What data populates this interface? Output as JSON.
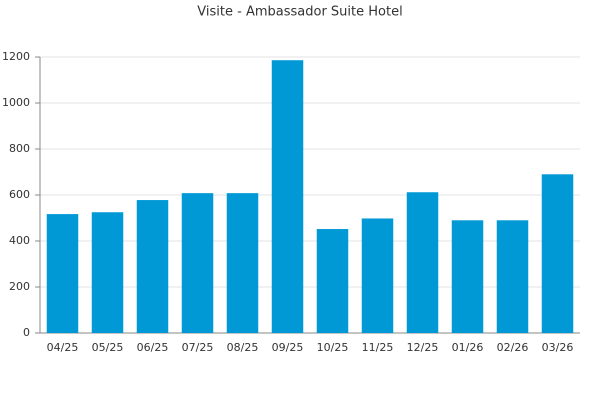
{
  "chart_data": {
    "type": "bar",
    "title": "Visite - Ambassador Suite Hotel",
    "categories": [
      "04/25",
      "05/25",
      "06/25",
      "07/25",
      "08/25",
      "09/25",
      "10/25",
      "11/25",
      "12/25",
      "01/26",
      "02/26",
      "03/26"
    ],
    "values": [
      517,
      525,
      578,
      608,
      608,
      1186,
      452,
      498,
      612,
      490,
      490,
      690
    ],
    "color": "#0099d6",
    "ylim": [
      0,
      1200
    ],
    "yticks": [
      0,
      200,
      400,
      600,
      800,
      1000,
      1200
    ],
    "grid": true
  }
}
